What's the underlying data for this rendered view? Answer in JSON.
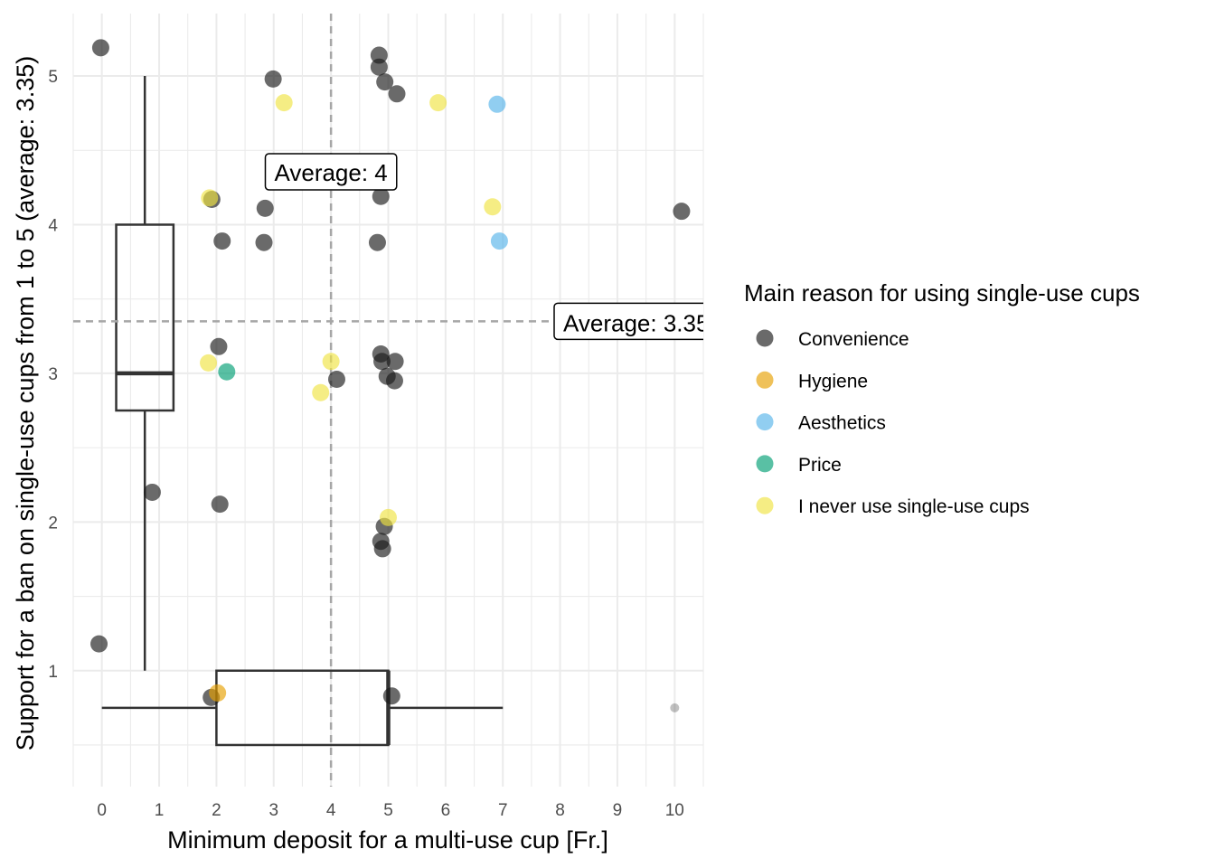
{
  "chart_data": {
    "type": "scatter",
    "xlabel": "Minimum deposit for a multi-use cup [Fr.]",
    "ylabel": "Support for a ban on single-use cups from 1 to 5 (average: 3.35)",
    "xlim": [
      -0.5,
      10.5
    ],
    "ylim": [
      0.22,
      5.42
    ],
    "x_ticks": [
      0,
      1,
      2,
      3,
      4,
      5,
      6,
      7,
      8,
      9,
      10
    ],
    "y_ticks": [
      1,
      2,
      3,
      4,
      5
    ],
    "grid": true,
    "legend": {
      "title": "Main reason for using single-use cups",
      "position": "right",
      "entries": [
        {
          "name": "Convenience",
          "color": "#1a1a1a"
        },
        {
          "name": "Hygiene",
          "color": "#E69F00"
        },
        {
          "name": "Aesthetics",
          "color": "#56B4E9"
        },
        {
          "name": "Price",
          "color": "#009E73"
        },
        {
          "name": "I never use single-use cups",
          "color": "#F0E442"
        }
      ]
    },
    "reference_lines": [
      {
        "axis": "x",
        "value": 4,
        "label": "Average: 4"
      },
      {
        "axis": "y",
        "value": 3.35,
        "label": "Average: 3.35"
      }
    ],
    "boxplot_y": {
      "min": 1,
      "q1": 2.75,
      "median": 3,
      "q3": 4,
      "max": 5
    },
    "boxplot_x": {
      "min": 0,
      "q1": 2,
      "median": 5,
      "q3": 5,
      "max": 7,
      "outliers": [
        10
      ]
    },
    "series": [
      {
        "name": "Convenience",
        "color": "#1a1a1a",
        "points": [
          [
            -0.02,
            5.19
          ],
          [
            -0.05,
            1.18
          ],
          [
            0.88,
            2.2
          ],
          [
            1.92,
            4.17
          ],
          [
            2.04,
            3.18
          ],
          [
            2.1,
            3.89
          ],
          [
            2.06,
            2.12
          ],
          [
            1.91,
            0.82
          ],
          [
            2.85,
            4.11
          ],
          [
            2.83,
            3.88
          ],
          [
            2.99,
            4.98
          ],
          [
            4.1,
            2.96
          ],
          [
            4.84,
            5.14
          ],
          [
            4.84,
            5.06
          ],
          [
            4.94,
            4.96
          ],
          [
            5.15,
            4.88
          ],
          [
            4.87,
            4.19
          ],
          [
            4.81,
            3.88
          ],
          [
            4.87,
            3.13
          ],
          [
            4.89,
            3.08
          ],
          [
            5.12,
            3.08
          ],
          [
            4.98,
            2.98
          ],
          [
            5.11,
            2.95
          ],
          [
            4.93,
            1.97
          ],
          [
            4.87,
            1.87
          ],
          [
            4.9,
            1.82
          ],
          [
            5.06,
            0.83
          ],
          [
            10.12,
            4.09
          ]
        ]
      },
      {
        "name": "Hygiene",
        "color": "#E69F00",
        "points": [
          [
            2.02,
            0.85
          ]
        ]
      },
      {
        "name": "Aesthetics",
        "color": "#56B4E9",
        "points": [
          [
            6.9,
            4.81
          ],
          [
            6.94,
            3.89
          ]
        ]
      },
      {
        "name": "Price",
        "color": "#009E73",
        "points": [
          [
            2.18,
            3.01
          ]
        ]
      },
      {
        "name": "I never use single-use cups",
        "color": "#F0E442",
        "points": [
          [
            3.18,
            4.82
          ],
          [
            5.87,
            4.82
          ],
          [
            1.88,
            4.18
          ],
          [
            6.82,
            4.12
          ],
          [
            1.86,
            3.07
          ],
          [
            4.0,
            3.08
          ],
          [
            3.82,
            2.87
          ],
          [
            5.0,
            2.03
          ]
        ]
      }
    ]
  }
}
